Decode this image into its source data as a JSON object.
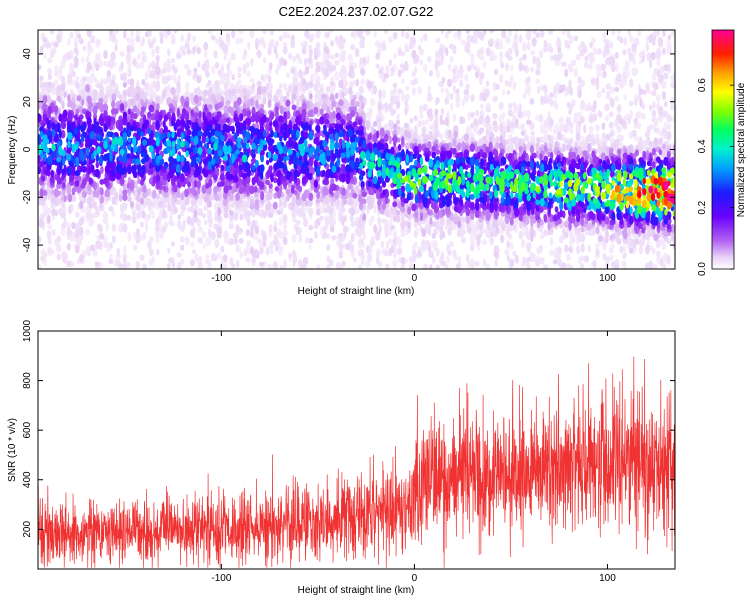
{
  "figure": {
    "title": "C2E2.2024.237.02.07.G22"
  },
  "chart_data": [
    {
      "type": "heatmap",
      "title": "C2E2.2024.237.02.07.G22",
      "xlabel": "Height of straight line (km)",
      "ylabel": "Frequency (Hz)",
      "xlim": [
        -195,
        135
      ],
      "ylim": [
        -50,
        50
      ],
      "x_ticks": [
        -100,
        0,
        100
      ],
      "y_ticks": [
        -40,
        -20,
        0,
        20,
        40
      ],
      "x_tick_labels": [
        "-100",
        "0",
        "100"
      ],
      "y_tick_labels": [
        "-40",
        "-20",
        "0",
        "20",
        "40"
      ],
      "grid": false,
      "colorbar": {
        "label": "Normalized spectral amplitude",
        "range": [
          0,
          0.78
        ],
        "ticks": [
          0.0,
          0.2,
          0.4,
          0.6
        ],
        "tick_labels": [
          "0.0",
          "0.2",
          "0.4",
          "0.6"
        ],
        "colormap": [
          "#ffffff",
          "#e6cdf5",
          "#a040f0",
          "#6a00ff",
          "#1c1cff",
          "#00c8ff",
          "#00ff80",
          "#80ff00",
          "#ffff00",
          "#ff8000",
          "#ff0000",
          "#ff00a0"
        ]
      },
      "ridge": {
        "description_points_x": [
          -195,
          -100,
          -30,
          -25,
          0,
          50,
          100,
          135
        ],
        "center_frequency_hz": [
          1,
          0,
          -1,
          -6,
          -12,
          -14,
          -17,
          -18
        ],
        "peak_amplitude": [
          0.3,
          0.3,
          0.3,
          0.35,
          0.45,
          0.4,
          0.5,
          0.78
        ]
      }
    },
    {
      "type": "line",
      "xlabel": "Height of straight line (km)",
      "ylabel": "SNR (10 * v/v)",
      "xlim": [
        -195,
        135
      ],
      "ylim": [
        40,
        1000
      ],
      "x_ticks": [
        -100,
        0,
        100
      ],
      "y_ticks": [
        200,
        400,
        600,
        800,
        1000
      ],
      "x_tick_labels": [
        "-100",
        "0",
        "100"
      ],
      "y_tick_labels": [
        "200",
        "400",
        "600",
        "800",
        "1000"
      ],
      "grid": false,
      "series_color": "#f03232",
      "trend": {
        "x": [
          -195,
          -100,
          -50,
          -5,
          5,
          50,
          100,
          135
        ],
        "mean": [
          180,
          195,
          220,
          280,
          390,
          420,
          480,
          470
        ],
        "spread": [
          70,
          75,
          85,
          110,
          130,
          140,
          150,
          150
        ]
      }
    }
  ]
}
